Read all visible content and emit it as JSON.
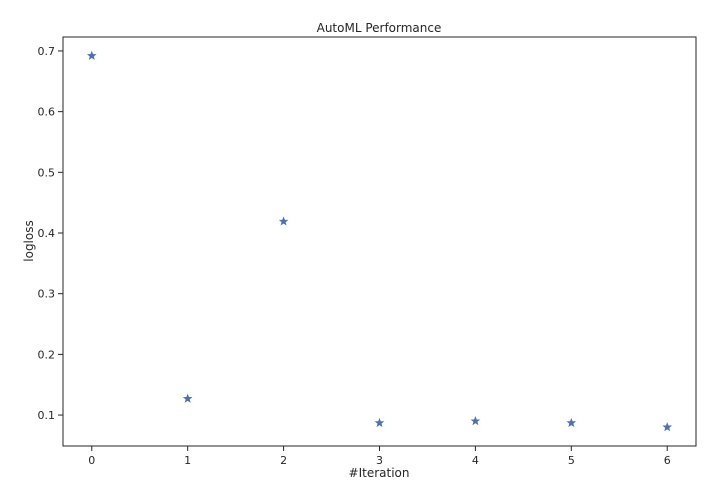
{
  "chart_data": {
    "type": "scatter",
    "title": "AutoML Performance",
    "xlabel": "#Iteration",
    "ylabel": "logloss",
    "x": [
      0,
      1,
      2,
      3,
      4,
      5,
      6
    ],
    "y": [
      0.692,
      0.127,
      0.419,
      0.087,
      0.09,
      0.087,
      0.08
    ],
    "xticks": [
      "0",
      "1",
      "2",
      "3",
      "4",
      "5",
      "6"
    ],
    "yticks": [
      "0.1",
      "0.2",
      "0.3",
      "0.4",
      "0.5",
      "0.6",
      "0.7"
    ],
    "xlim": [
      -0.3,
      6.3
    ],
    "ylim": [
      0.049,
      0.723
    ],
    "marker": "star",
    "marker_color": "#4c72b0",
    "grid": false,
    "legend": "none"
  }
}
